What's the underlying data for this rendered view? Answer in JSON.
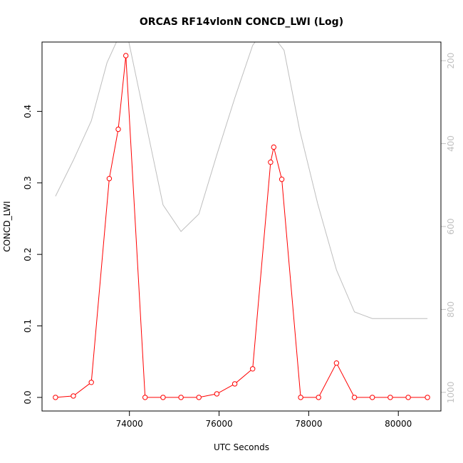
{
  "chart_data": {
    "type": "line",
    "title": "ORCAS RF14vlonN CONCD_LWI (Log)",
    "xlabel": "UTC Seconds",
    "ylabel": "CONCD_LWI",
    "xlim": [
      72050,
      80950
    ],
    "ylim": [
      -0.019,
      0.497
    ],
    "x_ticks": [
      74000,
      76000,
      78000,
      80000
    ],
    "y_ticks": [
      0.0,
      0.1,
      0.2,
      0.3,
      0.4
    ],
    "y_tick_labels": [
      "0.0",
      "0.1",
      "0.2",
      "0.3",
      "0.4"
    ],
    "y2lim": [
      1045,
      155
    ],
    "y2_ticks": [
      200,
      400,
      600,
      800,
      1000
    ],
    "series": [
      {
        "color": "#ff0000",
        "marker": "open-circle",
        "x": [
          72350,
          72750,
          73150,
          73550,
          73750,
          73920,
          74350,
          74750,
          75150,
          75550,
          75950,
          76350,
          76750,
          77150,
          77220,
          77400,
          77820,
          78220,
          78620,
          79020,
          79420,
          79820,
          80220,
          80650
        ],
        "values": [
          0.0,
          0.002,
          0.021,
          0.306,
          0.375,
          0.478,
          0.0,
          0.0,
          0.0,
          0.0,
          0.005,
          0.019,
          0.04,
          0.329,
          0.35,
          0.305,
          0.0,
          0.0,
          0.048,
          0.0,
          0.0,
          0.0,
          0.0,
          0.0
        ]
      },
      {
        "color": "#bebebe",
        "axis": "right",
        "x": [
          72350,
          72750,
          73150,
          73500,
          73900,
          74350,
          74750,
          75150,
          75550,
          75950,
          76350,
          76750,
          77050,
          77450,
          77800,
          78200,
          78620,
          79020,
          79420,
          79820,
          80220,
          80650
        ],
        "values": [
          527,
          440,
          345,
          205,
          110,
          342,
          548,
          612,
          570,
          427,
          290,
          163,
          118,
          175,
          368,
          545,
          705,
          806,
          822,
          822,
          822,
          822
        ]
      }
    ]
  }
}
